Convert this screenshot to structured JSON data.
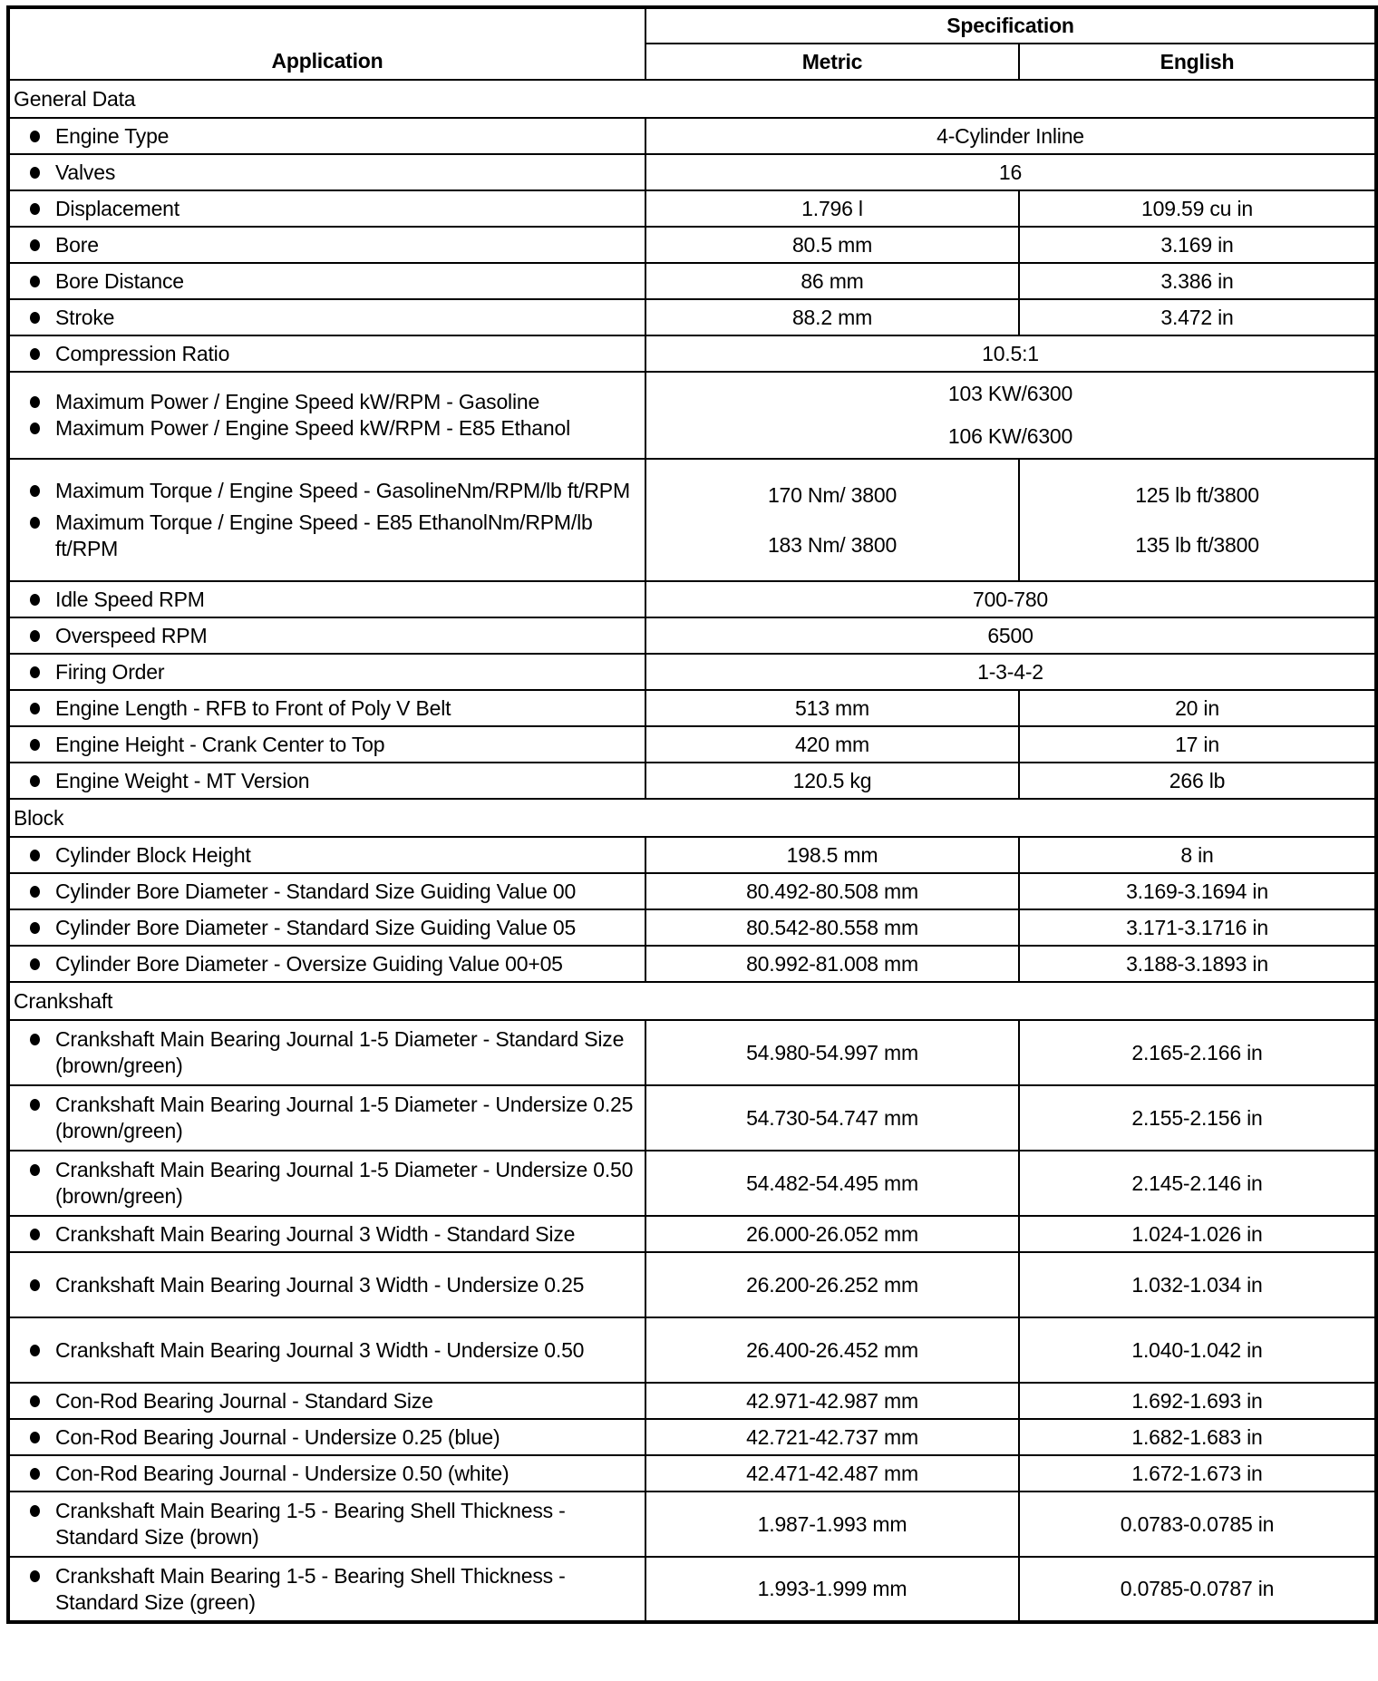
{
  "header": {
    "application": "Application",
    "specification": "Specification",
    "metric": "Metric",
    "english": "English"
  },
  "sections": [
    {
      "title": "General Data",
      "rows": [
        {
          "labels": [
            "Engine Type"
          ],
          "span": [
            "4-Cylinder Inline"
          ]
        },
        {
          "labels": [
            "Valves"
          ],
          "span": [
            "16"
          ]
        },
        {
          "labels": [
            "Displacement"
          ],
          "metric": [
            "1.796 l"
          ],
          "english": [
            "109.59 cu in"
          ]
        },
        {
          "labels": [
            "Bore"
          ],
          "metric": [
            "80.5 mm"
          ],
          "english": [
            "3.169 in"
          ]
        },
        {
          "labels": [
            "Bore Distance"
          ],
          "metric": [
            "86 mm"
          ],
          "english": [
            "3.386 in"
          ]
        },
        {
          "labels": [
            "Stroke"
          ],
          "metric": [
            "88.2 mm"
          ],
          "english": [
            "3.472 in"
          ]
        },
        {
          "labels": [
            "Compression Ratio"
          ],
          "span": [
            "10.5:1"
          ]
        },
        {
          "labels": [
            "Maximum Power / Engine Speed kW/RPM - Gasoline",
            "Maximum Power / Engine Speed kW/RPM - E85 Ethanol"
          ],
          "span": [
            "103 KW/6300",
            "106 KW/6300"
          ],
          "h": 96
        },
        {
          "labels": [
            "Maximum Torque / Engine Speed - GasolineNm/RPM/lb ft/RPM",
            "Maximum Torque / Engine Speed - E85 EthanolNm/RPM/lb ft/RPM"
          ],
          "metric": [
            "170 Nm/ 3800",
            "183 Nm/ 3800"
          ],
          "english": [
            "125 lb ft/3800",
            "135 lb ft/3800"
          ],
          "h": 135
        },
        {
          "labels": [
            "Idle Speed RPM"
          ],
          "span": [
            "700-780"
          ]
        },
        {
          "labels": [
            "Overspeed RPM"
          ],
          "span": [
            "6500"
          ]
        },
        {
          "labels": [
            "Firing Order"
          ],
          "span": [
            "1-3-4-2"
          ]
        },
        {
          "labels": [
            "Engine Length - RFB to Front of Poly V Belt"
          ],
          "metric": [
            "513 mm"
          ],
          "english": [
            "20 in"
          ]
        },
        {
          "labels": [
            "Engine Height - Crank Center to Top"
          ],
          "metric": [
            "420 mm"
          ],
          "english": [
            "17 in"
          ]
        },
        {
          "labels": [
            "Engine Weight - MT Version"
          ],
          "metric": [
            "120.5 kg"
          ],
          "english": [
            "266 lb"
          ]
        }
      ]
    },
    {
      "title": "Block",
      "rows": [
        {
          "labels": [
            "Cylinder Block Height"
          ],
          "metric": [
            "198.5 mm"
          ],
          "english": [
            "8 in"
          ]
        },
        {
          "labels": [
            "Cylinder Bore Diameter - Standard Size Guiding Value 00"
          ],
          "metric": [
            "80.492-80.508 mm"
          ],
          "english": [
            "3.169-3.1694 in"
          ]
        },
        {
          "labels": [
            "Cylinder Bore Diameter - Standard Size Guiding Value 05"
          ],
          "metric": [
            "80.542-80.558 mm"
          ],
          "english": [
            "3.171-3.1716 in"
          ]
        },
        {
          "labels": [
            "Cylinder Bore Diameter - Oversize Guiding Value 00+05"
          ],
          "metric": [
            "80.992-81.008 mm"
          ],
          "english": [
            "3.188-3.1893 in"
          ]
        }
      ]
    },
    {
      "title": "Crankshaft",
      "rows": [
        {
          "labels": [
            "Crankshaft Main Bearing Journal 1-5 Diameter - Standard Size (brown/green)"
          ],
          "metric": [
            "54.980-54.997 mm"
          ],
          "english": [
            "2.165-2.166 in"
          ],
          "h": 72
        },
        {
          "labels": [
            "Crankshaft Main Bearing Journal 1-5 Diameter - Undersize 0.25 (brown/green)"
          ],
          "metric": [
            "54.730-54.747 mm"
          ],
          "english": [
            "2.155-2.156 in"
          ],
          "h": 72
        },
        {
          "labels": [
            "Crankshaft Main Bearing Journal 1-5 Diameter - Undersize 0.50 (brown/green)"
          ],
          "metric": [
            "54.482-54.495 mm"
          ],
          "english": [
            "2.145-2.146 in"
          ],
          "h": 72
        },
        {
          "labels": [
            "Crankshaft Main Bearing Journal 3 Width - Standard Size"
          ],
          "metric": [
            "26.000-26.052 mm"
          ],
          "english": [
            "1.024-1.026 in"
          ]
        },
        {
          "labels": [
            "Crankshaft Main Bearing Journal 3 Width - Undersize 0.25"
          ],
          "metric": [
            "26.200-26.252 mm"
          ],
          "english": [
            "1.032-1.034 in"
          ],
          "h": 72
        },
        {
          "labels": [
            "Crankshaft Main Bearing Journal 3 Width - Undersize 0.50"
          ],
          "metric": [
            "26.400-26.452 mm"
          ],
          "english": [
            "1.040-1.042 in"
          ],
          "h": 72
        },
        {
          "labels": [
            "Con-Rod Bearing Journal - Standard Size"
          ],
          "metric": [
            "42.971-42.987 mm"
          ],
          "english": [
            "1.692-1.693 in"
          ]
        },
        {
          "labels": [
            "Con-Rod Bearing Journal - Undersize 0.25 (blue)"
          ],
          "metric": [
            "42.721-42.737 mm"
          ],
          "english": [
            "1.682-1.683 in"
          ]
        },
        {
          "labels": [
            "Con-Rod Bearing Journal - Undersize 0.50 (white)"
          ],
          "metric": [
            "42.471-42.487 mm"
          ],
          "english": [
            "1.672-1.673 in"
          ]
        },
        {
          "labels": [
            "Crankshaft Main Bearing 1-5 - Bearing Shell Thickness - Standard Size (brown)"
          ],
          "metric": [
            "1.987-1.993 mm"
          ],
          "english": [
            "0.0783-0.0785 in"
          ],
          "h": 72
        },
        {
          "labels": [
            "Crankshaft Main Bearing 1-5 - Bearing Shell Thickness - Standard Size (green)"
          ],
          "metric": [
            "1.993-1.999 mm"
          ],
          "english": [
            "0.0785-0.0787 in"
          ],
          "h": 72
        }
      ]
    }
  ]
}
